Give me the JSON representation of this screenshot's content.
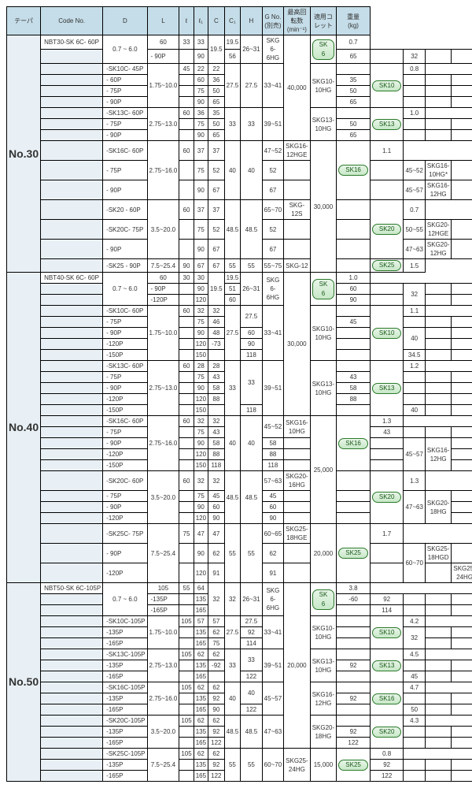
{
  "headers": [
    "テーパ",
    "Code No.",
    "D",
    "L",
    "ℓ",
    "ℓ₁",
    "C",
    "C₁",
    "H",
    "G No.\n(別売)",
    "最高回転数\n(min⁻¹)",
    "適用コレット",
    "重量\n(kg)"
  ],
  "c": {
    "w": "#fff",
    "h": "#c5dde8",
    "t": "#e8f0f5",
    "b": "#2a7a2a"
  },
  "rows": [
    [
      "No.30",
      "NBT30-SK 6C- 60P",
      "0.7 ~ 6.0",
      "60",
      "33",
      "33",
      "19.5",
      "19.5",
      "26~31",
      "SKG 6- 6HG",
      "40,000",
      "SK 6",
      "0.7"
    ],
    [
      "",
      "- 90P",
      "",
      "90",
      "56",
      "65",
      "",
      "32",
      "",
      "",
      "",
      "",
      "0.7"
    ],
    [
      "",
      "-SK10C- 45P",
      "1.75~10.0",
      "45",
      "22",
      "22",
      "27.5",
      "27.5",
      "33~41",
      "SKG10-10HG",
      "",
      "SK10",
      "0.8"
    ],
    [
      "",
      "- 60P",
      "",
      "60",
      "36",
      "35",
      "",
      "",
      "",
      "",
      "",
      "",
      "0.9"
    ],
    [
      "",
      "- 75P",
      "",
      "75",
      "50",
      "50",
      "",
      "",
      "",
      "",
      "",
      "",
      "1.0"
    ],
    [
      "",
      "- 90P",
      "",
      "90",
      "65",
      "65",
      "",
      "",
      "",
      "",
      "",
      "",
      "1.0"
    ],
    [
      "",
      "-SK13C- 60P",
      "2.75~13.0",
      "60",
      "36",
      "35",
      "33",
      "33",
      "39~51",
      "SKG13-10HG",
      "",
      "SK13",
      "1.0"
    ],
    [
      "",
      "- 75P",
      "",
      "75",
      "50",
      "50",
      "",
      "",
      "",
      "",
      "",
      "",
      "1.1"
    ],
    [
      "",
      "- 90P",
      "",
      "90",
      "65",
      "65",
      "",
      "",
      "",
      "",
      "",
      "",
      "1.1"
    ],
    [
      "",
      "-SK16C- 60P",
      "2.75~16.0",
      "60",
      "37",
      "37",
      "40",
      "40",
      "47~52",
      "SKG16-12HGE",
      "30,000",
      "SK16",
      "1.1"
    ],
    [
      "",
      "- 75P",
      "",
      "75",
      "52",
      "52",
      "",
      "",
      "45~52",
      "SKG16-10HG*",
      "",
      "",
      "1.2"
    ],
    [
      "",
      "- 90P",
      "",
      "90",
      "67",
      "67",
      "",
      "",
      "45~57",
      "SKG16-12HG",
      "",
      "",
      "1.2"
    ],
    [
      "",
      "-SK20 - 60P",
      "3.5~20.0",
      "60",
      "37",
      "37",
      "48.5",
      "48.5",
      "65~70",
      "SKG-12S",
      "",
      "SK20",
      "0.7"
    ],
    [
      "",
      "-SK20C- 75P",
      "",
      "75",
      "52",
      "52",
      "",
      "",
      "50~55",
      "SKG20-12HGE",
      "",
      "",
      "0.9"
    ],
    [
      "",
      "- 90P",
      "",
      "90",
      "67",
      "67",
      "",
      "",
      "47~63",
      "SKG20-12HG",
      "",
      "",
      "1.2"
    ],
    [
      "",
      "-SK25 - 90P",
      "7.5~25.4",
      "90",
      "67",
      "67",
      "55",
      "55",
      "55~75",
      "SKG-12",
      "",
      "SK25",
      "1.5"
    ],
    [
      "No.40",
      "NBT40-SK 6C- 60P",
      "0.7 ~ 6.0",
      "60",
      "30",
      "30",
      "19.5",
      "19.5",
      "26~31",
      "SKG 6- 6HG",
      "30,000",
      "SK 6",
      "1.0"
    ],
    [
      "",
      "- 90P",
      "",
      "90",
      "51",
      "60",
      "",
      "32",
      "",
      "",
      "",
      "",
      "1.2"
    ],
    [
      "",
      "-120P",
      "",
      "120",
      "60",
      "90",
      "",
      "",
      "",
      "",
      "",
      "",
      "1.4"
    ],
    [
      "",
      "-SK10C- 60P",
      "1.75~10.0",
      "60",
      "32",
      "32",
      "27.5",
      "27.5",
      "33~41",
      "SKG10-10HG",
      "",
      "SK10",
      "1.1"
    ],
    [
      "",
      "- 75P",
      "",
      "75",
      "46",
      "45",
      "",
      "",
      "",
      "",
      "",
      "",
      "1.2"
    ],
    [
      "",
      "- 90P",
      "",
      "90",
      "48",
      "60",
      "",
      "40",
      "",
      "",
      "",
      "",
      "1.2"
    ],
    [
      "",
      "-120P",
      "",
      "120",
      "-73",
      "90",
      "",
      "",
      "",
      "",
      "",
      "",
      "1.4"
    ],
    [
      "",
      "-150P",
      "",
      "150",
      "",
      "118",
      "",
      "34.5",
      "",
      "",
      "",
      "",
      "1.6"
    ],
    [
      "",
      "-SK13C- 60P",
      "2.75~13.0",
      "60",
      "28",
      "28",
      "33",
      "33",
      "39~51",
      "SKG13-10HG",
      "",
      "SK13",
      "1.2"
    ],
    [
      "",
      "- 75P",
      "",
      "75",
      "43",
      "43",
      "",
      "",
      "",
      "",
      "",
      "",
      "1.3"
    ],
    [
      "",
      "- 90P",
      "",
      "90",
      "58",
      "58",
      "",
      "",
      "",
      "",
      "",
      "",
      "1.4"
    ],
    [
      "",
      "-120P",
      "",
      "120",
      "88",
      "88",
      "",
      "",
      "",
      "",
      "",
      "",
      "1.6"
    ],
    [
      "",
      "-150P",
      "",
      "150",
      "",
      "118",
      "",
      "40",
      "",
      "",
      "",
      "",
      "1.8"
    ],
    [
      "",
      "-SK16C- 60P",
      "2.75~16.0",
      "60",
      "32",
      "32",
      "40",
      "40",
      "45~52",
      "SKG16-10HG",
      "25,000",
      "SK16",
      "1.3"
    ],
    [
      "",
      "- 75P",
      "",
      "75",
      "43",
      "43",
      "",
      "",
      "",
      "",
      "",
      "",
      "1.4"
    ],
    [
      "",
      "- 90P",
      "",
      "90",
      "58",
      "58",
      "",
      "",
      "45~57",
      "SKG16-12HG",
      "",
      "",
      "1.5"
    ],
    [
      "",
      "-120P",
      "",
      "120",
      "88",
      "88",
      "",
      "",
      "",
      "",
      "",
      "",
      "1.7"
    ],
    [
      "",
      "-150P",
      "",
      "150",
      "118",
      "118",
      "",
      "",
      "",
      "",
      "",
      "",
      "1.9"
    ],
    [
      "",
      "-SK20C- 60P",
      "3.5~20.0",
      "60",
      "32",
      "32",
      "48.5",
      "48.5",
      "57~63",
      "SKG20-16HG",
      "",
      "SK20",
      "1.3"
    ],
    [
      "",
      "- 75P",
      "",
      "75",
      "45",
      "45",
      "",
      "",
      "47~63",
      "SKG20-18HG",
      "",
      "",
      "1.4"
    ],
    [
      "",
      "- 90P",
      "",
      "90",
      "60",
      "60",
      "",
      "",
      "",
      "",
      "",
      "",
      "1.6"
    ],
    [
      "",
      "-120P",
      "",
      "120",
      "90",
      "90",
      "",
      "",
      "",
      "",
      "",
      "",
      "2.0"
    ],
    [
      "",
      "-SK25C- 75P",
      "7.5~25.4",
      "75",
      "47",
      "47",
      "55",
      "55",
      "60~65",
      "SKG25-18HGE",
      "20,000",
      "SK25",
      "1.7"
    ],
    [
      "",
      "- 90P",
      "",
      "90",
      "62",
      "62",
      "",
      "",
      "60~70",
      "SKG25-18HGD",
      "",
      "",
      "1.8"
    ],
    [
      "",
      "-120P",
      "",
      "120",
      "91",
      "91",
      "",
      "",
      "",
      "SKG25-24HG",
      "",
      "",
      "2.0"
    ],
    [
      "No.50",
      "NBT50-SK 6C-105P",
      "0.7 ~ 6.0",
      "105",
      "55",
      "64",
      "32",
      "32",
      "26~31",
      "SKG 6- 6HG",
      "20,000",
      "SK 6",
      "3.8"
    ],
    [
      "",
      "-135P",
      "",
      "135",
      "-60",
      "92",
      "",
      "",
      "",
      "",
      "",
      "",
      "3.9"
    ],
    [
      "",
      "-165P",
      "",
      "165",
      "",
      "114",
      "",
      "",
      "",
      "",
      "",
      "",
      "4.0"
    ],
    [
      "",
      "-SK10C-105P",
      "1.75~10.0",
      "105",
      "57",
      "57",
      "27.5",
      "27.5",
      "33~41",
      "SKG10-10HG",
      "",
      "SK10",
      "4.2"
    ],
    [
      "",
      "-135P",
      "",
      "135",
      "62",
      "92",
      "",
      "32",
      "",
      "",
      "",
      "",
      "4.3"
    ],
    [
      "",
      "-165P",
      "",
      "165",
      "75",
      "114",
      "",
      "",
      "",
      "",
      "",
      "",
      "4.5"
    ],
    [
      "",
      "-SK13C-105P",
      "2.75~13.0",
      "105",
      "62",
      "62",
      "33",
      "33",
      "39~51",
      "SKG13-10HG",
      "",
      "SK13",
      "4.5"
    ],
    [
      "",
      "-135P",
      "",
      "135",
      "-92",
      "92",
      "",
      "",
      "",
      "",
      "",
      "",
      "4.7"
    ],
    [
      "",
      "-165P",
      "",
      "165",
      "",
      "122",
      "",
      "45",
      "",
      "",
      "",
      "",
      "4.7"
    ],
    [
      "",
      "-SK16C-105P",
      "2.75~16.0",
      "105",
      "62",
      "62",
      "40",
      "40",
      "45~57",
      "SKG16-12HG",
      "",
      "SK16",
      "4.7"
    ],
    [
      "",
      "-135P",
      "",
      "135",
      "92",
      "92",
      "",
      "",
      "",
      "",
      "",
      "",
      "4.9"
    ],
    [
      "",
      "-165P",
      "",
      "165",
      "90",
      "122",
      "",
      "50",
      "",
      "",
      "",
      "",
      "4.9"
    ],
    [
      "",
      "-SK20C-105P",
      "3.5~20.0",
      "105",
      "62",
      "62",
      "48.5",
      "48.5",
      "47~63",
      "SKG20-18HG",
      "",
      "SK20",
      "4.3"
    ],
    [
      "",
      "-135P",
      "",
      "135",
      "92",
      "92",
      "",
      "",
      "",
      "",
      "",
      "",
      "4.6"
    ],
    [
      "",
      "-165P",
      "",
      "165",
      "122",
      "122",
      "",
      "",
      "",
      "",
      "",
      "",
      "5.2"
    ],
    [
      "",
      "-SK25C-105P",
      "7.5~25.4",
      "105",
      "62",
      "62",
      "55",
      "55",
      "60~70",
      "SKG25-24HG",
      "15,000",
      "SK25",
      "0.8"
    ],
    [
      "",
      "-135P",
      "",
      "135",
      "92",
      "92",
      "",
      "",
      "",
      "",
      "",
      "",
      "5.4"
    ],
    [
      "",
      "-165P",
      "",
      "165",
      "122",
      "122",
      "",
      "",
      "",
      "",
      "",
      "",
      "5.5"
    ]
  ]
}
